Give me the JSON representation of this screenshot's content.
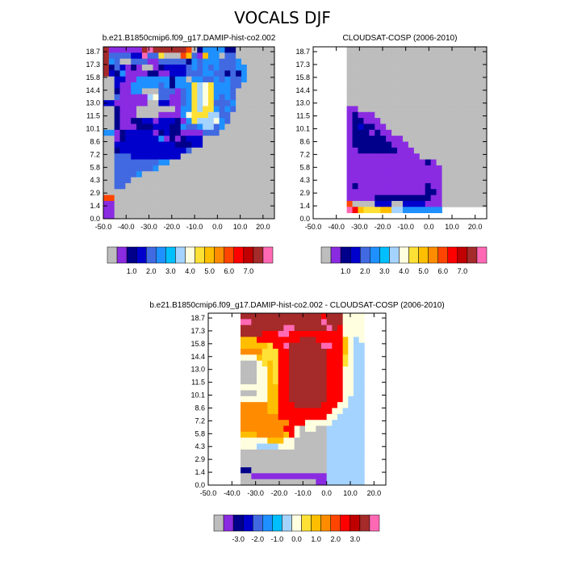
{
  "title": "VOCALS DJF",
  "chart_data": [
    {
      "type": "heatmap",
      "title": "b.e21.B1850cmip6.f09_g17.DAMIP-hist-co2.002",
      "x_ticks": [
        "-50.0",
        "-40.0",
        "-30.0",
        "-20.0",
        "-10.0",
        "0.0",
        "10.0",
        "20.0"
      ],
      "y_ticks": [
        "0.0",
        "1.4",
        "2.9",
        "4.3",
        "5.8",
        "7.2",
        "8.6",
        "10.1",
        "11.5",
        "13.0",
        "14.4",
        "15.8",
        "17.3",
        "18.7"
      ],
      "colorbar_labels": [
        "1.0",
        "2.0",
        "3.0",
        "4.0",
        "5.0",
        "6.0",
        "7.0"
      ],
      "colors": [
        "#bdbdbd",
        "#8a2be2",
        "#00008b",
        "#0000cd",
        "#4169e1",
        "#1e90ff",
        "#00bfff",
        "#a4d3ff",
        "#ffffe0",
        "#ffe135",
        "#ffbf00",
        "#ff8c00",
        "#ff4500",
        "#ff0000",
        "#c00000",
        "#a52a2a",
        "#ff69b4"
      ],
      "grid": [
        "PBBBBBBPQPPPPPPMGCFFFFCCGGGGGGG",
        "PEEEEDDQEEJGGGMKEBKFFGEEGGGGGGG",
        "PFEAAEEEBBEEEEECFEFFFEEEFGGGGGG",
        "PCEDBCBAABCDDDDEFEFEFEEEFFGGGGG",
        "PDCFBBBBCCBBDDDEEEFFEECECFGGGGG",
        "GGDDBBFFFFFFCFFGFFEEFEFEEFGGGGG",
        "GGDBBFFFFFEFCFFFJHIJFFFEEGGGGGG",
        "GGCBBFFGGGEEEBEFJHIJFFFEGGGGGGG",
        "GGEBBBBBHIEEBBEFJHIJFEFEGGGGGGG",
        "DDBBBBBBAADDBBEFJHIJEEEFGGGGGGG",
        "GGCBBBAAAAAAABFFJHJJFEFEGGGGGGG",
        "GGCBBBAAAABBBBFIJJJHHEEGGGGGGGG",
        "GGCBBCCDDBDDDCBFJHHHIFEGGGGGGGG",
        "GGCBBBCCCDDDCCFEEFHHEFGGGGGGGGG",
        "FFBCDDDDDBCDCCBBBBEEEGGGGGGGGGG",
        "GGBCDDDDDDFBCBCDDDGGGGGGGGGGGGG",
        "GGDDDDDDDDDDDCCCDDGGGGGGGGGGGGG",
        "GGCDDDDDDDDDDDDEGGGGGGGGGGGGGGG",
        "GGEEEDDDDDDDDDGGGGGGGGGGGGGGGGG",
        "GGEEEEEEEEFFGGGGGGGGGGGGGGGGGGG",
        "GGEEEEEEEFGGGGGGGGGGGGGGGGGGGGG",
        "GGEEEEFGGGGGGGGGGGGGGGGGGGGGGGG",
        "GGEEEGGGGGGGGGGGGGGGGGGGGGGGGGG",
        "GGEEGGGGGGGGGGGGGGGGGGGGGGGGGGG",
        "GGGGGGGGGGGGGGGGGGGGGGGGGGGGGGG",
        "MMGGGGGGGGGGGGGGGGGGGGGGGGGGGGG",
        "BBGGGGGGGGGGGGGGGGGGGGGGGGGGGGG",
        "BBGGGGGGGGGGGGGGGGGGGGGGGGGGGGG",
        "BBGGGGGGGGGGGGGGGGGGGGGGGGGGGGG"
      ]
    },
    {
      "type": "heatmap",
      "title": "CLOUDSAT-COSP (2006-2010)",
      "x_ticks": [
        "-50.0",
        "-40.0",
        "-30.0",
        "-20.0",
        "-10.0",
        "0.0",
        "10.0",
        "20.0"
      ],
      "y_ticks": [
        "0.0",
        "1.4",
        "2.9",
        "4.3",
        "5.8",
        "7.2",
        "8.6",
        "10.1",
        "11.5",
        "13.0",
        "14.4",
        "15.8",
        "17.3",
        "18.7"
      ],
      "colorbar_labels": [
        "1.0",
        "2.0",
        "3.0",
        "4.0",
        "5.0",
        "6.0",
        "7.0"
      ],
      "colors": [
        "#bdbdbd",
        "#8a2be2",
        "#00008b",
        "#0000cd",
        "#4169e1",
        "#1e90ff",
        "#00bfff",
        "#a4d3ff",
        "#ffffe0",
        "#ffe135",
        "#ffbf00",
        "#ff8c00",
        "#ff4500",
        "#ff0000",
        "#c00000",
        "#a52a2a",
        "#ff69b4"
      ],
      "grid": [
        "WWWWWWAAAAAAAAAAAAAAAAAAAAAAAAA",
        "WWWWWWAAAAAAAAAAAAAAAAAAAAAAAAA",
        "WWWWWWAAAAAAAAAAAAAAAAAAAAAAAAA",
        "WWWWWWAAAAAAAAAAAAAAAAAAAAAAAAA",
        "WWWWWWAAAAAAAAAAAAAAAAAAAAAAAAA",
        "WWWWWWAAAAAAAAAAAAAAAAAAAAAAAAA",
        "WWWWWWAAAAAAAAAAAAAAAAAAAAAAAAA",
        "WWWWWWAAAAAAAAAAAAAAAAAAAAAAAAA",
        "WWWWWWAAAAAAAAAAAAAAAAAAAAAAAAA",
        "WWWWWWAAAAAAAAAAAAAAAAAAAAAAAAA",
        "WWWWWWBBAAAAAAAAAAAAAAAAAAAAAAA",
        "WWWWWWBCBBBAAAAAAAAAAAAAAAAAAAA",
        "WWWWWWBCCBBBAAAAAAAAAAAAAAAAAAA",
        "WWWWWWBCDCCBBAAAAAAAAAAAAAAAAAA",
        "WWWWWWBCCCBCBBAAAAAAAAAAAAAAAAA",
        "WWWWWWBCCCCCCBBBAAAAAAAAAAAAAAA",
        "WWWWWWBCCCCCCCBBBAAAAAAAAAAAAAA",
        "WWWWWWBBCCCCCCCBBBAAAAAAAAAAAAA",
        "WWWWWWBBBBBBBBBBBBBAAAAAAAAAAAA",
        "WWWWWWBBBBBBBBBBBBBBCBAAAAAAAAA",
        "WWWWWWBBBBBBBBBBBBBBBBBAAAAAAAA",
        "WWWWWWBBBBBBBBBBBBBBBBBAAAAAAAA",
        "WWWWWWBBBBBBBBBBBBBBBBBAAAAAAAA",
        "WWWWWWBCBBBBBBBBBBBBCBBAAAAAAAA",
        "WWWWWWBBBBBBBBBBBBBBCCBAAAAAAAA",
        "WWWWWWBBBBBCCCCCCCCCCBBAAAAAAAA",
        "WWWWWWMGGGGDDDGGDDDDBBBAAAAAAAA",
        "WWWWWWQNKJJJKKHHFFFFFFFWWWWWWWW",
        "WWWWWWWWWWWWWWWWWWWWWWWWWWWWWWW"
      ]
    },
    {
      "type": "heatmap",
      "title": "b.e21.B1850cmip6.f09_g17.DAMIP-hist-co2.002 - CLOUDSAT-COSP (2006-2010)",
      "x_ticks": [
        "-50.0",
        "-40.0",
        "-30.0",
        "-20.0",
        "-10.0",
        "0.0",
        "10.0",
        "20.0"
      ],
      "y_ticks": [
        "0.0",
        "1.4",
        "2.9",
        "4.3",
        "5.8",
        "7.2",
        "8.6",
        "10.1",
        "11.5",
        "13.0",
        "14.4",
        "15.8",
        "17.3",
        "18.7"
      ],
      "colorbar_labels": [
        "-3.0",
        "-2.0",
        "-1.0",
        "0.0",
        "1.0",
        "2.0",
        "3.0"
      ],
      "colors": [
        "#bdbdbd",
        "#8a2be2",
        "#00008b",
        "#0000cd",
        "#4169e1",
        "#1e90ff",
        "#00bfff",
        "#a4d3ff",
        "#ffffe0",
        "#ffe135",
        "#ffbf00",
        "#ff8c00",
        "#ff4500",
        "#ff0000",
        "#c00000",
        "#a52a2a",
        "#ff69b4"
      ],
      "grid": [
        "WWWWWWPPPPPPPPPPPPPPPNPPPIIIIWWWW",
        "WWWWWWQQPPPPPPPPPPPPPQPPPIIIIWWWW",
        "WWWWWWPPPPPPPPQQPPPPPPQPNIIIIWWWW",
        "WWWWWWPPPPNNNQQNNNNNNNNNNIIIIWWWW",
        "WWWWWWKKKNNNNNNNNPPPNNNNNKIHIWWWW",
        "WWWWWWKKKKKJNNQPPPPPPQQNNKIHHWWWW",
        "WWWWWWLLLLJJJNNPPPPPPPNNNKIHHWWWW",
        "WWWWWWIIIKJJJNNPPPPPPPNNNJIHHWWWW",
        "WWWWWWGGGIJKJNNPPPPPPPNNNJIHHWWWW",
        "WWWWWWGGGIIKJNNPPPPPPPNNNIIHHWWWW",
        "WWWWWWGGGIIKJNNPPPPPPPNNNIIHHWWWW",
        "WWWWWWGGGIIKJNNPPPPPPPNNNIIHHWWWW",
        "WWWWWWIIIIIKKNNPPPPPPPNNNIIHHWWWW",
        "WWWWWWGGGIIKKNNPPPPPPPNNNIIHHWWWW",
        "WWWWWWIIIIIKKNNPPPPPPPNNNIHHHWWWW",
        "WWWWWWLLLLLKKNNNPPPPPNNNIIHHHWWWW",
        "WWWWWWLLLLLKKNNNNNNNNNNIIHHHHWWWW",
        "WWWWWWLLLLLLLNNNNNNNNNIIHHHHHWWWW",
        "WWWWWWLLLLLLLLLNNNIIIIIHHHHHHWWWW",
        "WWWWWWLLLLLLLLNNIGIIGGHHHHHHHWWWW",
        "WWWWWWKKKLLLLLKNIGGGGGHHHHHHHWWWW",
        "WWWWWWIIIIIKKKIIGGGGGGHHHHHHHWWWW",
        "WWWWWWIIIHHHHIIIGGGGGGHHHHHHHWWWW",
        "WWWWWWGGGGGGGGGGGGGGGGHHHHHHHWWWW",
        "WWWWWWGGGGGGGGGGGGGGGGHHHHHHHWWWW",
        "WWWWWWGGGGGGGGGGGGGGGGHHHHHHHWWWW",
        "WWWWWWCCGGGGGGGGGGGGGGHHHHHHHWWWW",
        "WWWWWWGGBBBBBBBBBBBBBBHHHHHHHWWWW",
        "WWWWWWAAAAAAAAAAAAAABBHHHHHHHWWWW"
      ]
    }
  ]
}
